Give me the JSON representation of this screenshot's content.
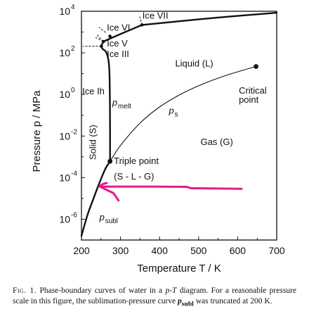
{
  "chart_data": {
    "type": "line",
    "title": "",
    "xlabel": "Temperature T / K",
    "ylabel": "Pressure p / MPa",
    "xlim": [
      200,
      700
    ],
    "ylim_log10": [
      -7,
      4
    ],
    "x_scale": "linear",
    "y_scale": "log",
    "x_ticks": [
      200,
      300,
      400,
      500,
      600,
      700
    ],
    "x_tick_labels": [
      "200",
      "300",
      "400",
      "500",
      "600",
      "700"
    ],
    "y_tick_exponents": [
      -6,
      -4,
      -2,
      0,
      2,
      4
    ],
    "y_tick_labels": [
      "10",
      "10",
      "10",
      "10",
      "10",
      "10"
    ],
    "y_tick_label_exponents": [
      "-6",
      "-4",
      "-2",
      "0",
      "2",
      "4"
    ],
    "grid": false,
    "series": [
      {
        "name": "p_subl",
        "style": "thick",
        "points": [
          [
            200,
            1.6e-07
          ],
          [
            215,
            1.5e-06
          ],
          [
            230,
            9e-06
          ],
          [
            245,
            5e-05
          ],
          [
            260,
            0.00024
          ],
          [
            273.16,
            0.00061
          ]
        ]
      },
      {
        "name": "p_melt",
        "style": "thick",
        "points": [
          [
            273.16,
            0.00061
          ],
          [
            273.0,
            0.2
          ],
          [
            271,
            20
          ],
          [
            264,
            100
          ],
          [
            255,
            150
          ],
          [
            251,
            210
          ],
          [
            256.2,
            350
          ]
        ]
      },
      {
        "name": "p_s",
        "style": "thin",
        "points": [
          [
            273.16,
            0.00061
          ],
          [
            300,
            0.0035
          ],
          [
            350,
            0.042
          ],
          [
            400,
            0.25
          ],
          [
            450,
            0.93
          ],
          [
            500,
            2.6
          ],
          [
            550,
            6.1
          ],
          [
            600,
            12.3
          ],
          [
            647.1,
            22.06
          ]
        ]
      },
      {
        "name": "Ice VI boundary",
        "style": "thick",
        "points": [
          [
            256.2,
            350
          ],
          [
            300,
            800
          ],
          [
            355,
            2200
          ]
        ]
      },
      {
        "name": "Ice VII boundary",
        "style": "thick",
        "points": [
          [
            355,
            2200
          ],
          [
            450,
            3300
          ],
          [
            550,
            5000
          ],
          [
            700,
            8500
          ]
        ]
      }
    ],
    "points": [
      {
        "name": "Triple point",
        "x": 273.16,
        "y": 0.00061
      },
      {
        "name": "Critical point",
        "x": 647.1,
        "y": 22.06
      },
      {
        "name": "Ice VII triple point",
        "x": 355,
        "y": 2200
      },
      {
        "name": "Ice VI triple point",
        "x": 273,
        "y": 630
      },
      {
        "name": "Ice V triple point",
        "x": 256.2,
        "y": 350
      },
      {
        "name": "Ice III triple point",
        "x": 251,
        "y": 210
      }
    ],
    "annotation_arrow": {
      "color": "#e5198a",
      "points": [
        [
          610,
          2.9e-05
        ],
        [
          480,
          3.1e-05
        ],
        [
          470,
          3.6e-05
        ],
        [
          380,
          3.7e-05
        ],
        [
          260,
          3.7e-05
        ],
        [
          246,
          3.8e-05
        ]
      ],
      "head_branches": [
        [
          [
            246,
            3.8e-05
          ],
          [
            282,
            1.8e-05
          ],
          [
            295,
            8e-06
          ]
        ],
        [
          [
            246,
            3.8e-05
          ],
          [
            255,
            5e-05
          ],
          [
            265,
            5.5e-05
          ]
        ]
      ]
    },
    "labels": {
      "ice_vii": "Ice VII",
      "ice_vi": "Ice VI",
      "ice_v": "Ice V",
      "ice_iii": "Ice III",
      "ice_ih": "Ice Ih",
      "liquid": "Liquid (L)",
      "gas": "Gas (G)",
      "solid": "Solid (S)",
      "critical_line1": "Critical",
      "critical_line2": "point",
      "triple_line1": "Triple point",
      "triple_line2": "(S - L - G)",
      "p_letter": "p",
      "melt_sub": "melt",
      "s_sub": "s",
      "subl_sub": "subl"
    }
  },
  "caption": {
    "fig_label": "Fig. 1.",
    "text_1": "Phase-boundary curves of water in a ",
    "text_pT": "p-T",
    "text_2": " diagram. For a reasonable pressure scale in this figure, the sublimation-pressure curve ",
    "text_p": "p",
    "text_subl": "subl",
    "text_3": " was truncated at 200 K."
  },
  "colors": {
    "axis": "#111111",
    "curves": "#111111",
    "annotation": "#e5198a"
  }
}
